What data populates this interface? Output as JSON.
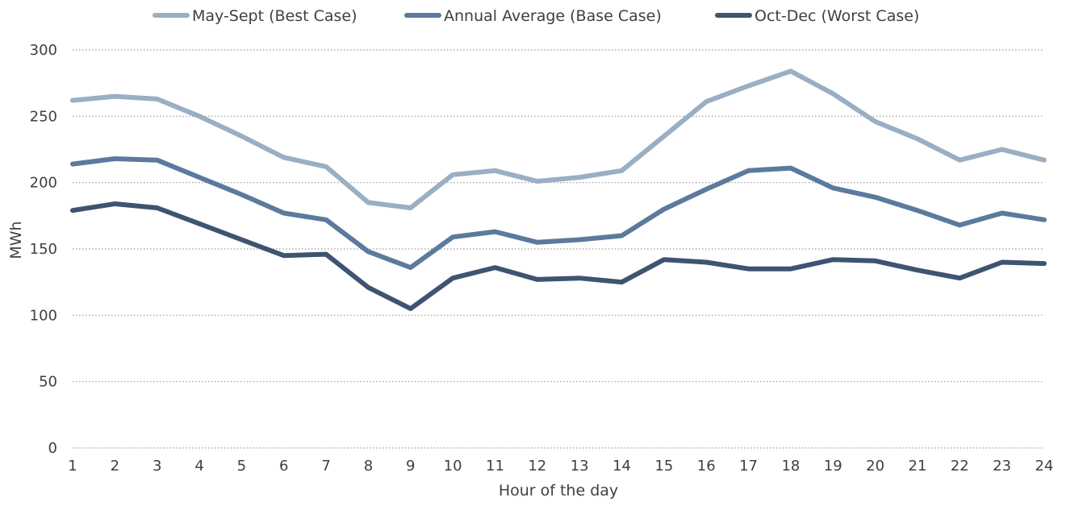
{
  "chart_data": {
    "type": "line",
    "title": "",
    "xlabel": "Hour of the day",
    "ylabel": "MWh",
    "ylim": [
      0,
      300
    ],
    "yticks": [
      0,
      50,
      100,
      150,
      200,
      250,
      300
    ],
    "grid": "horizontal dotted",
    "legend_position": "top",
    "x": [
      1,
      2,
      3,
      4,
      5,
      6,
      7,
      8,
      9,
      10,
      11,
      12,
      13,
      14,
      15,
      16,
      17,
      18,
      19,
      20,
      21,
      22,
      23,
      24
    ],
    "series": [
      {
        "name": "May-Sept (Best Case)",
        "color": "#9aaec4",
        "values": [
          262,
          265,
          263,
          250,
          235,
          219,
          212,
          185,
          181,
          206,
          209,
          201,
          204,
          209,
          235,
          261,
          273,
          284,
          267,
          246,
          233,
          217,
          225,
          217
        ]
      },
      {
        "name": "Annual Average (Base Case)",
        "color": "#5b7a9d",
        "values": [
          214,
          218,
          217,
          204,
          191,
          177,
          172,
          148,
          136,
          159,
          163,
          155,
          157,
          160,
          180,
          195,
          209,
          211,
          196,
          189,
          179,
          168,
          177,
          172
        ]
      },
      {
        "name": "Oct-Dec (Worst Case)",
        "color": "#3e5470",
        "values": [
          179,
          184,
          181,
          169,
          157,
          145,
          146,
          121,
          105,
          128,
          136,
          127,
          128,
          125,
          142,
          140,
          135,
          135,
          142,
          141,
          134,
          128,
          140,
          139
        ]
      }
    ]
  }
}
